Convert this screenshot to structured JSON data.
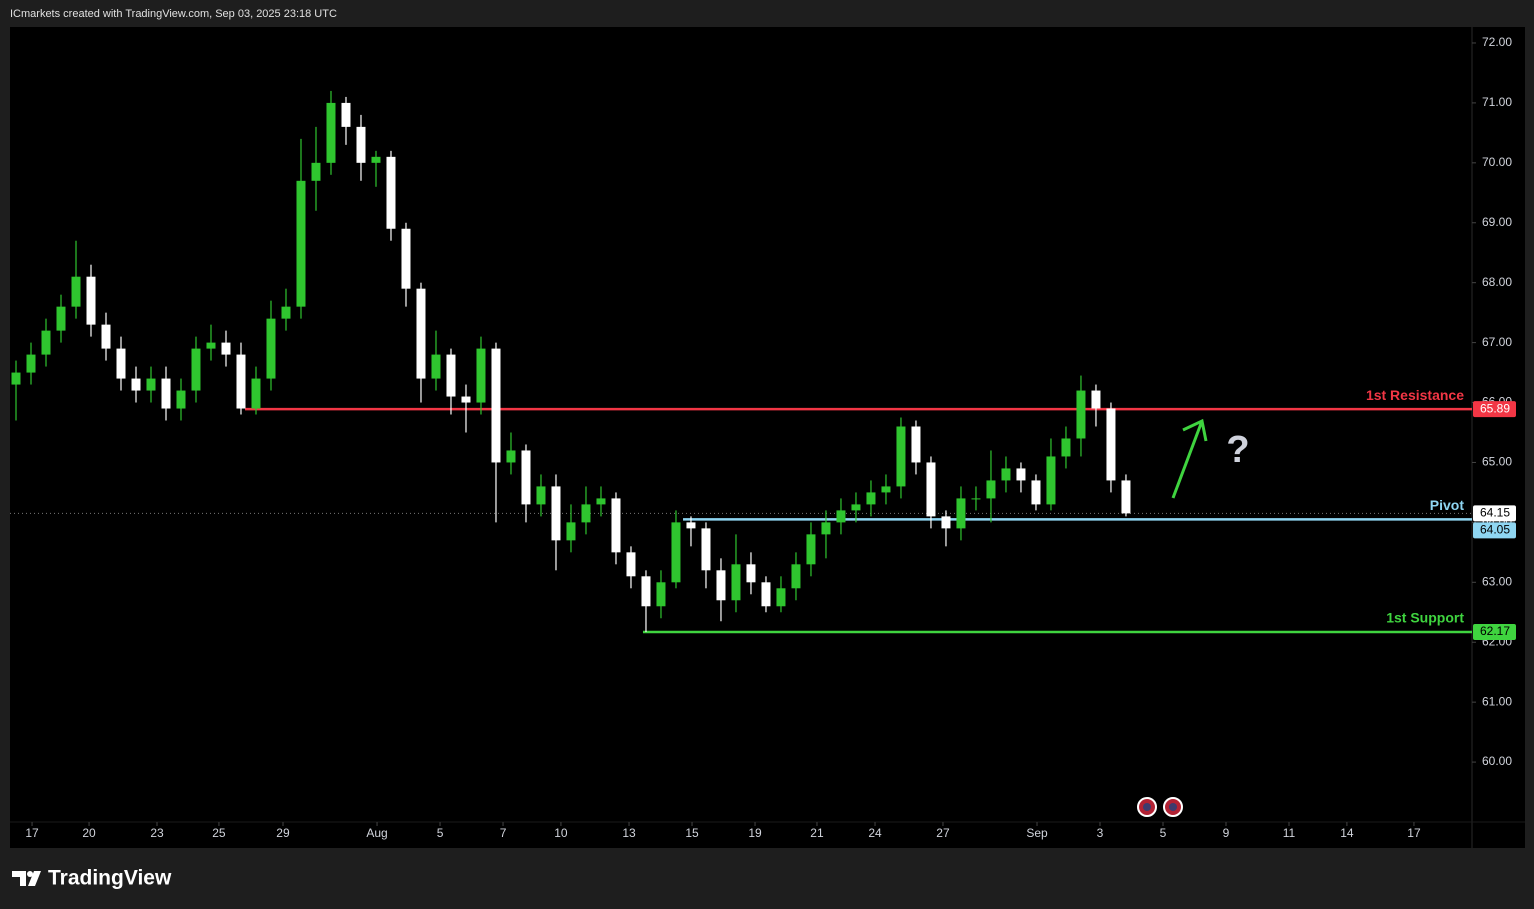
{
  "header": {
    "text": "ICmarkets created with TradingView.com, Sep 03, 2025 23:18 UTC"
  },
  "chart_data": {
    "type": "candlestick",
    "xlim": [
      -0.4,
      97.07
    ],
    "ylim": [
      59.0,
      72.25
    ],
    "xticks": [
      {
        "value": 1.07,
        "label": "17"
      },
      {
        "value": 4.87,
        "label": "20"
      },
      {
        "value": 9.4,
        "label": "23"
      },
      {
        "value": 13.53,
        "label": "25"
      },
      {
        "value": 17.8,
        "label": "29"
      },
      {
        "value": 24.07,
        "label": "Aug"
      },
      {
        "value": 28.27,
        "label": "5"
      },
      {
        "value": 32.47,
        "label": "7"
      },
      {
        "value": 36.33,
        "label": "10"
      },
      {
        "value": 40.87,
        "label": "13"
      },
      {
        "value": 45.07,
        "label": "15"
      },
      {
        "value": 49.27,
        "label": "19"
      },
      {
        "value": 53.4,
        "label": "21"
      },
      {
        "value": 57.27,
        "label": "24"
      },
      {
        "value": 61.8,
        "label": "27"
      },
      {
        "value": 68.07,
        "label": "Sep"
      },
      {
        "value": 72.27,
        "label": "3"
      },
      {
        "value": 76.47,
        "label": "5"
      },
      {
        "value": 80.67,
        "label": "9"
      },
      {
        "value": 84.87,
        "label": "11"
      },
      {
        "value": 88.73,
        "label": "14"
      },
      {
        "value": 93.2,
        "label": "17"
      }
    ],
    "yticks": [
      {
        "value": 72,
        "label": "72.00"
      },
      {
        "value": 71,
        "label": "71.00"
      },
      {
        "value": 70,
        "label": "70.00"
      },
      {
        "value": 69,
        "label": "69.00"
      },
      {
        "value": 68,
        "label": "68.00"
      },
      {
        "value": 67,
        "label": "67.00"
      },
      {
        "value": 66,
        "label": "66.00"
      },
      {
        "value": 65,
        "label": "65.00"
      },
      {
        "value": 64,
        "label": "64.00"
      },
      {
        "value": 63,
        "label": "63.00"
      },
      {
        "value": 62,
        "label": "62.00"
      },
      {
        "value": 61,
        "label": "61.00"
      },
      {
        "value": 60,
        "label": "60.00"
      }
    ],
    "up_color": "#2fc52f",
    "down_color": "#ffffff",
    "open": [
      66.3,
      66.5,
      66.8,
      67.2,
      67.6,
      68.1,
      67.3,
      66.9,
      66.4,
      66.2,
      66.4,
      65.9,
      66.2,
      66.9,
      67.0,
      66.8,
      65.9,
      66.4,
      67.4,
      67.6,
      69.7,
      70.0,
      71.0,
      70.6,
      70.0,
      70.1,
      68.9,
      67.9,
      66.4,
      66.8,
      66.1,
      66.0,
      66.9,
      65.0,
      65.2,
      64.3,
      64.6,
      63.7,
      64.0,
      64.3,
      64.4,
      63.5,
      63.1,
      62.6,
      63.0,
      64.0,
      63.9,
      63.2,
      62.7,
      63.3,
      63.0,
      62.6,
      62.9,
      63.3,
      63.8,
      64.0,
      64.2,
      64.3,
      64.5,
      64.6,
      65.6,
      65.0,
      64.1,
      63.9,
      64.4,
      64.4,
      64.7,
      64.9,
      64.7,
      64.3,
      65.1,
      65.4,
      66.2,
      65.9,
      64.7
    ],
    "high": [
      66.7,
      67.0,
      67.4,
      67.8,
      68.7,
      68.3,
      67.5,
      67.1,
      66.6,
      66.6,
      66.6,
      66.4,
      67.1,
      67.3,
      67.2,
      67.0,
      66.6,
      67.7,
      67.9,
      70.4,
      70.6,
      71.2,
      71.1,
      70.8,
      70.2,
      70.2,
      69.0,
      68.0,
      67.2,
      66.9,
      66.3,
      67.1,
      67.0,
      65.5,
      65.3,
      64.8,
      64.8,
      64.3,
      64.6,
      64.6,
      64.5,
      63.6,
      63.2,
      63.2,
      64.2,
      64.1,
      64.0,
      63.4,
      63.8,
      63.5,
      63.1,
      63.1,
      63.5,
      64.0,
      64.2,
      64.4,
      64.5,
      64.7,
      64.8,
      65.75,
      65.7,
      65.1,
      64.2,
      64.6,
      64.6,
      65.2,
      65.1,
      65.0,
      64.8,
      65.4,
      65.6,
      66.45,
      66.3,
      66.0,
      64.8
    ],
    "low": [
      65.7,
      66.3,
      66.6,
      67.0,
      67.4,
      67.1,
      66.7,
      66.2,
      66.0,
      66.0,
      65.7,
      65.7,
      66.0,
      66.7,
      66.6,
      65.8,
      65.8,
      66.2,
      67.2,
      67.4,
      69.2,
      69.8,
      70.3,
      69.7,
      69.6,
      68.7,
      67.6,
      66.0,
      66.2,
      65.8,
      65.5,
      65.8,
      64.0,
      64.8,
      64.0,
      64.1,
      63.2,
      63.5,
      63.8,
      64.1,
      63.3,
      62.9,
      62.17,
      62.4,
      62.9,
      63.6,
      62.9,
      62.35,
      62.5,
      62.8,
      62.5,
      62.5,
      62.7,
      63.1,
      63.4,
      63.8,
      64.0,
      64.1,
      64.3,
      64.4,
      64.8,
      63.9,
      63.6,
      63.7,
      64.2,
      64.0,
      64.5,
      64.5,
      64.2,
      64.2,
      64.9,
      65.1,
      65.6,
      64.5,
      64.1
    ],
    "close": [
      66.5,
      66.8,
      67.2,
      67.6,
      68.1,
      67.3,
      66.9,
      66.4,
      66.2,
      66.4,
      65.9,
      66.2,
      66.9,
      67.0,
      66.8,
      65.9,
      66.4,
      67.4,
      67.6,
      69.7,
      70.0,
      71.0,
      70.6,
      70.0,
      70.1,
      68.9,
      67.9,
      66.4,
      66.8,
      66.1,
      66.0,
      66.9,
      65.0,
      65.2,
      64.3,
      64.6,
      63.7,
      64.0,
      64.3,
      64.4,
      63.5,
      63.1,
      62.6,
      63.0,
      64.0,
      63.9,
      63.2,
      62.7,
      63.3,
      63.0,
      62.6,
      62.9,
      63.3,
      63.8,
      64.0,
      64.2,
      64.3,
      64.5,
      64.6,
      65.6,
      65.0,
      64.1,
      63.9,
      64.4,
      64.4,
      64.7,
      64.9,
      64.7,
      64.3,
      65.1,
      65.4,
      66.2,
      65.9,
      64.7,
      64.15
    ],
    "last_price": 64.15,
    "levels": [
      {
        "name": "1st Resistance",
        "value": 65.89,
        "x_start": 15.27,
        "color": "#f23645",
        "tag_text_color": "#ffffff"
      },
      {
        "name": "Pivot",
        "value": 64.05,
        "x_start": 44.47,
        "color": "#8fd6f2",
        "tag_text_color": "#000000"
      },
      {
        "name": "1st Support",
        "value": 62.17,
        "x_start": 41.8,
        "color": "#3fd43f",
        "tag_text_color": "#000000"
      }
    ],
    "annotation": "?"
  },
  "footer": {
    "brand": "TradingView"
  }
}
